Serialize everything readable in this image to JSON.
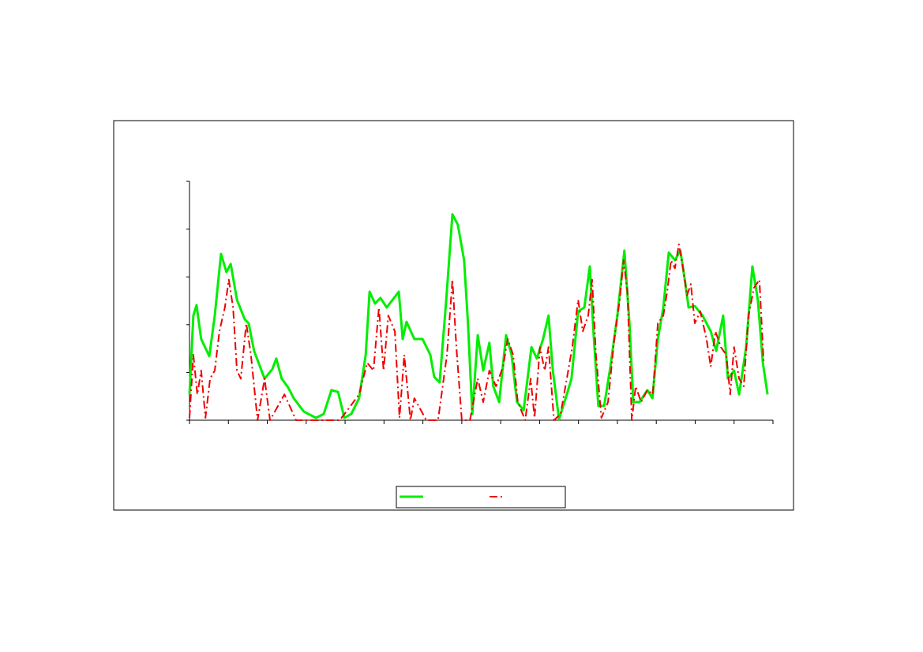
{
  "chart_data": {
    "type": "line",
    "xlim": [
      0,
      15
    ],
    "xticks": [
      0,
      1,
      2,
      3,
      4,
      5,
      6,
      7,
      8,
      9,
      10,
      11,
      12,
      13,
      14,
      15
    ],
    "ylim": [
      0,
      5
    ],
    "yticks": [
      0,
      1,
      2,
      3,
      4,
      5
    ],
    "legend": "bottom",
    "series": [
      {
        "color": "#00ee00",
        "style": "solid",
        "x": [
          0,
          0.1,
          0.18,
          0.3,
          0.51,
          0.65,
          0.81,
          0.95,
          1.06,
          1.22,
          1.42,
          1.52,
          1.66,
          1.93,
          2.13,
          2.23,
          2.37,
          2.54,
          2.68,
          2.94,
          3.25,
          3.45,
          3.65,
          3.82,
          3.98,
          4.16,
          4.36,
          4.53,
          4.63,
          4.77,
          4.91,
          5.07,
          5.22,
          5.38,
          5.48,
          5.58,
          5.78,
          5.99,
          6.19,
          6.29,
          6.43,
          6.6,
          6.76,
          6.9,
          7.06,
          7.16,
          7.27,
          7.41,
          7.55,
          7.71,
          7.81,
          7.96,
          8.14,
          8.28,
          8.42,
          8.59,
          8.79,
          8.93,
          9.09,
          9.23,
          9.34,
          9.5,
          9.7,
          9.82,
          9.99,
          10.15,
          10.29,
          10.39,
          10.51,
          10.66,
          10.82,
          11.0,
          11.18,
          11.31,
          11.41,
          11.57,
          11.77,
          11.9,
          12.04,
          12.18,
          12.32,
          12.48,
          12.62,
          12.75,
          12.83,
          12.99,
          13.19,
          13.4,
          13.54,
          13.72,
          13.84,
          14.0,
          14.13,
          14.31,
          14.47,
          14.61,
          14.74,
          14.86
        ],
        "values": [
          0.54,
          2.19,
          2.41,
          1.7,
          1.34,
          2.19,
          3.48,
          3.1,
          3.27,
          2.52,
          2.11,
          2.03,
          1.45,
          0.87,
          1.07,
          1.29,
          0.87,
          0.68,
          0.46,
          0.18,
          0.05,
          0.13,
          0.63,
          0.59,
          0.05,
          0.13,
          0.46,
          1.37,
          2.69,
          2.44,
          2.56,
          2.36,
          2.52,
          2.69,
          1.7,
          2.06,
          1.7,
          1.7,
          1.37,
          0.91,
          0.79,
          2.52,
          4.31,
          4.09,
          3.35,
          2.03,
          0.13,
          1.78,
          1.04,
          1.62,
          0.71,
          0.38,
          1.78,
          1.37,
          0.38,
          0.21,
          1.53,
          1.29,
          1.7,
          2.19,
          1.04,
          0.02,
          0.54,
          0.87,
          2.28,
          2.36,
          3.22,
          1.78,
          0.3,
          0.3,
          1.12,
          2.19,
          3.55,
          2.03,
          0.38,
          0.38,
          0.63,
          0.46,
          1.7,
          2.36,
          3.51,
          3.35,
          3.55,
          2.85,
          2.36,
          2.39,
          2.19,
          1.86,
          1.45,
          2.19,
          0.87,
          1.04,
          0.54,
          1.53,
          3.22,
          2.52,
          1.2,
          0.54
        ]
      },
      {
        "color": "#ee0000",
        "style": "dash-dot",
        "x": [
          0,
          0.1,
          0.2,
          0.3,
          0.41,
          0.53,
          0.65,
          0.77,
          0.91,
          1.01,
          1.12,
          1.22,
          1.32,
          1.46,
          1.58,
          1.75,
          1.93,
          2.07,
          2.44,
          2.74,
          3.86,
          4.06,
          4.36,
          4.57,
          4.73,
          4.87,
          4.99,
          5.11,
          5.28,
          5.4,
          5.52,
          5.68,
          5.78,
          6.09,
          6.39,
          6.62,
          6.76,
          6.86,
          7.0,
          7.21,
          7.41,
          7.55,
          7.71,
          7.88,
          8.06,
          8.18,
          8.32,
          8.44,
          8.63,
          8.77,
          8.87,
          9.01,
          9.13,
          9.23,
          9.37,
          9.54,
          9.7,
          9.84,
          9.99,
          10.11,
          10.25,
          10.35,
          10.45,
          10.59,
          10.76,
          10.92,
          11.06,
          11.16,
          11.26,
          11.37,
          11.47,
          11.61,
          11.77,
          11.91,
          12.04,
          12.18,
          12.28,
          12.38,
          12.48,
          12.58,
          12.69,
          12.79,
          12.89,
          12.99,
          13.13,
          13.29,
          13.4,
          13.52,
          13.66,
          13.8,
          13.9,
          14.0,
          14.13,
          14.25,
          14.37,
          14.51,
          14.65,
          14.76
        ],
        "values": [
          0.05,
          1.37,
          0.54,
          1.04,
          0.05,
          0.87,
          1.04,
          1.86,
          2.36,
          2.94,
          2.36,
          1.04,
          0.87,
          2.03,
          1.37,
          0,
          0.87,
          0,
          0.54,
          0,
          0,
          0.21,
          0.54,
          1.2,
          1.04,
          2.36,
          1.04,
          2.19,
          1.86,
          0.05,
          1.37,
          0,
          0.46,
          0,
          0,
          1.37,
          2.94,
          1.53,
          0,
          0,
          0.87,
          0.38,
          1.04,
          0.71,
          1.12,
          1.7,
          1.37,
          0.38,
          0,
          0.87,
          0.05,
          1.53,
          1.04,
          1.53,
          0,
          0.13,
          0.87,
          1.53,
          2.52,
          1.86,
          2.19,
          2.94,
          1.37,
          0.05,
          0.38,
          1.7,
          2.52,
          3.35,
          2.69,
          0,
          0.71,
          0.38,
          0.63,
          0.54,
          2.03,
          2.19,
          2.69,
          3.35,
          3.18,
          3.68,
          3.18,
          2.61,
          2.85,
          2.03,
          2.28,
          1.7,
          1.12,
          1.86,
          1.53,
          1.37,
          0.54,
          1.53,
          0.87,
          0.71,
          2.19,
          2.77,
          2.94,
          1.2
        ]
      }
    ]
  }
}
